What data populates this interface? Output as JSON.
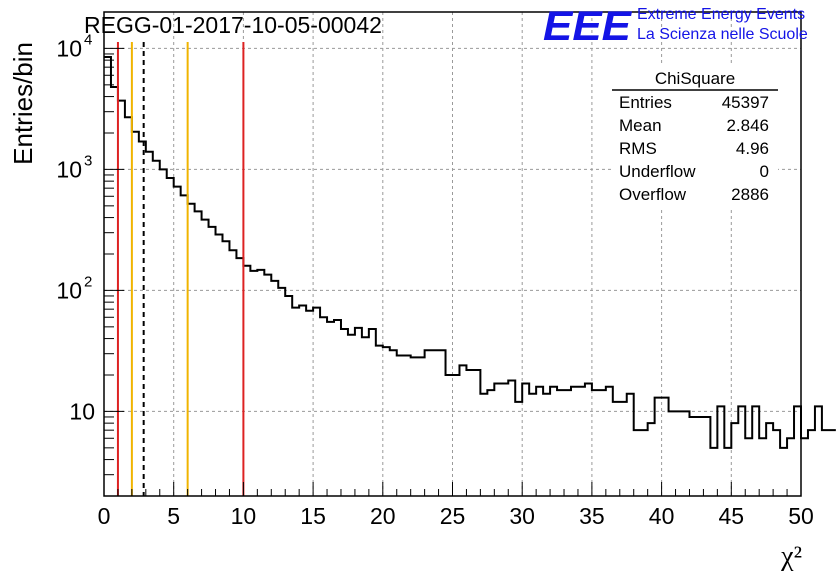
{
  "header": {
    "title": "REGG-01-2017-10-05-00042",
    "logo_mark": "EEE",
    "logo_line1": "Extreme Energy Events",
    "logo_line2": "La Scienza nelle Scuole"
  },
  "stats_box": {
    "title": "ChiSquare",
    "rows": [
      {
        "label": "Entries",
        "value": "45397"
      },
      {
        "label": "Mean",
        "value": "2.846"
      },
      {
        "label": "RMS",
        "value": "4.96"
      },
      {
        "label": "Underflow",
        "value": "0"
      },
      {
        "label": "Overflow",
        "value": "2886"
      }
    ]
  },
  "chart_data": {
    "type": "histogram",
    "title": "REGG-01-2017-10-05-00042",
    "xlabel": "χ²",
    "ylabel": "Entries/bin",
    "xlim": [
      0,
      50
    ],
    "ylim": [
      2,
      20000
    ],
    "yscale": "log",
    "grid": true,
    "x_ticks": [
      0,
      5,
      10,
      15,
      20,
      25,
      30,
      35,
      40,
      45,
      50
    ],
    "y_ticks": [
      {
        "value": 10,
        "label": "10"
      },
      {
        "value": 100,
        "label": "10",
        "exp": "2"
      },
      {
        "value": 1000,
        "label": "10",
        "exp": "3"
      },
      {
        "value": 10000,
        "label": "10",
        "exp": "4"
      }
    ],
    "bin_width": 0.5,
    "bin_start": 0,
    "values": [
      8500,
      4800,
      3700,
      2700,
      2050,
      1700,
      1400,
      1180,
      1000,
      850,
      720,
      610,
      520,
      450,
      385,
      335,
      290,
      255,
      215,
      185,
      160,
      145,
      148,
      135,
      120,
      105,
      90,
      72,
      75,
      68,
      72,
      60,
      55,
      57,
      48,
      43,
      49,
      41,
      48,
      35,
      34,
      32,
      29,
      29,
      28,
      28,
      32,
      32,
      32,
      20,
      20,
      24,
      22,
      22,
      14,
      15,
      17,
      17,
      18,
      12,
      17,
      14,
      16,
      14,
      16,
      15,
      15,
      16,
      16,
      17,
      15,
      15,
      16,
      12,
      12,
      14,
      7,
      7,
      8,
      13,
      13,
      10,
      10,
      10,
      9,
      9,
      9,
      5,
      11,
      5,
      8,
      11,
      6,
      11,
      6,
      8,
      7,
      5,
      6,
      11,
      6,
      7,
      11,
      7,
      7
    ],
    "reference_lines": [
      {
        "x": 1,
        "color": "#dd2222",
        "style": "solid"
      },
      {
        "x": 2,
        "color": "#f0b400",
        "style": "solid"
      },
      {
        "x": 2.846,
        "color": "#000000",
        "style": "dashed"
      },
      {
        "x": 6,
        "color": "#f0b400",
        "style": "solid"
      },
      {
        "x": 10,
        "color": "#dd2222",
        "style": "solid"
      }
    ]
  }
}
